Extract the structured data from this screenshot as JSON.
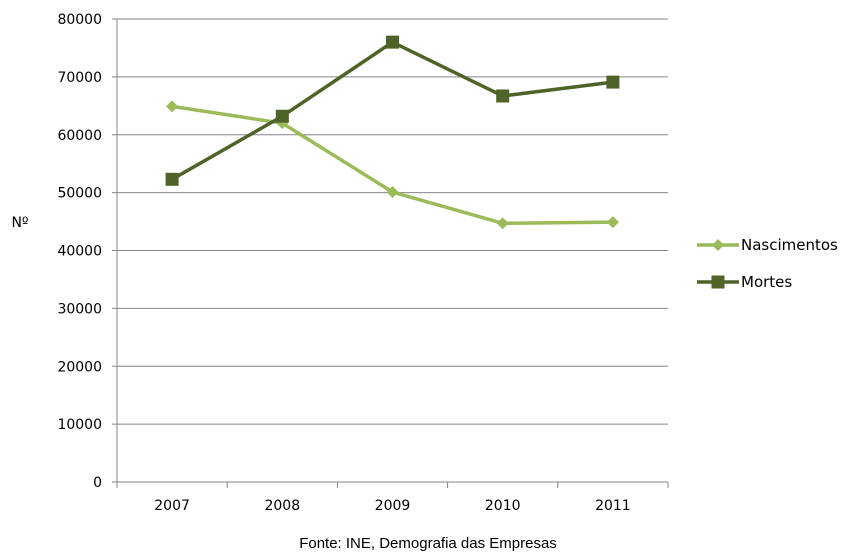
{
  "chart_data": {
    "type": "line",
    "categories": [
      "2007",
      "2008",
      "2009",
      "2010",
      "2011"
    ],
    "series": [
      {
        "name": "Nascimentos",
        "values": [
          64900,
          62000,
          50100,
          44700,
          44900
        ],
        "color": "#9bbb59",
        "marker": "diamond"
      },
      {
        "name": "Mortes",
        "values": [
          52300,
          63200,
          76000,
          66700,
          69100
        ],
        "color": "#4f6228",
        "marker": "square"
      }
    ],
    "ylabel": "Nº",
    "xlabel": "",
    "ylim": [
      0,
      80000
    ],
    "yticks": [
      "0",
      "10000",
      "20000",
      "30000",
      "40000",
      "50000",
      "60000",
      "70000",
      "80000"
    ],
    "grid": true,
    "legend": "right"
  },
  "source": "Fonte: INE, Demografia das Empresas"
}
